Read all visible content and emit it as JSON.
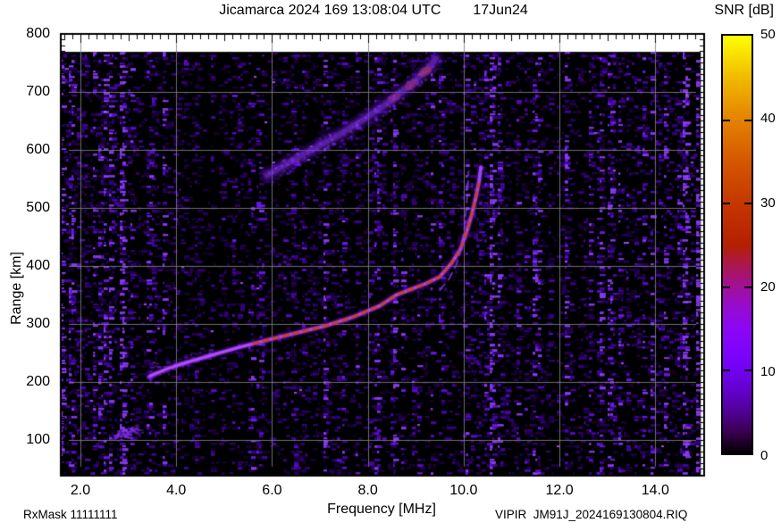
{
  "chart_data": {
    "type": "heatmap",
    "title": "Jicamarca 2024 169 13:08:04 UTC",
    "date_label": "17Jun24",
    "xlabel": "Frequency [MHz]",
    "ylabel": "Range [km]",
    "colorbar_label": "SNR [dB]",
    "footer_left": "RxMask 11111111",
    "footer_right": "VIPIR  JM91J_2024169130804.RIQ",
    "x_ticks": [
      2.0,
      4.0,
      6.0,
      8.0,
      10.0,
      12.0,
      14.0
    ],
    "x_tick_labels": [
      "2.0",
      "4.0",
      "6.0",
      "8.0",
      "10.0",
      "12.0",
      "14.0"
    ],
    "y_ticks": [
      100,
      200,
      300,
      400,
      500,
      600,
      700,
      800
    ],
    "y_tick_labels": [
      "100",
      "200",
      "300",
      "400",
      "500",
      "600",
      "700",
      "800"
    ],
    "colorbar_ticks": [
      0,
      10,
      20,
      30,
      40,
      50
    ],
    "colorbar_tick_labels": [
      "0",
      "10",
      "20",
      "30",
      "40",
      "50"
    ],
    "colorbar_range_db": [
      0,
      50
    ],
    "x_range_mhz": [
      1.59,
      15.02
    ],
    "y_range_km": [
      38,
      800
    ],
    "data_extent": {
      "x_max_mhz": 14.95,
      "y_max_km": 769
    },
    "grid": true,
    "legend_position": "right-colorbar",
    "palette_stops": [
      {
        "db": 0,
        "color": "#000000"
      },
      {
        "db": 2.5,
        "color": "#39004f"
      },
      {
        "db": 5,
        "color": "#510096"
      },
      {
        "db": 7.5,
        "color": "#6301ca"
      },
      {
        "db": 10,
        "color": "#7202f2"
      },
      {
        "db": 12.5,
        "color": "#7f04fe"
      },
      {
        "db": 15,
        "color": "#8c07f2"
      },
      {
        "db": 17.5,
        "color": "#970bcf"
      },
      {
        "db": 20,
        "color": "#a11096"
      },
      {
        "db": 22.5,
        "color": "#ab174f"
      },
      {
        "db": 25,
        "color": "#b42000"
      },
      {
        "db": 30,
        "color": "#c53700"
      },
      {
        "db": 35,
        "color": "#d55700"
      },
      {
        "db": 40,
        "color": "#e48300"
      },
      {
        "db": 45,
        "color": "#f1ba00"
      },
      {
        "db": 50,
        "color": "#ffff00"
      }
    ],
    "noise_floor_db": [
      0,
      8
    ],
    "hot_noise_columns_mhz": [
      2.85,
      4.45,
      5.85,
      10.55,
      10.72,
      12.75,
      13.4,
      14.6,
      14.85
    ],
    "traces": {
      "f_region_echo": {
        "snr_db": 28,
        "core_snr_range_mhz": [
          5.6,
          10.33
        ],
        "points_mhz_km": [
          [
            3.45,
            210
          ],
          [
            3.8,
            222
          ],
          [
            4.2,
            233
          ],
          [
            4.7,
            245
          ],
          [
            5.3,
            259
          ],
          [
            5.9,
            272
          ],
          [
            6.5,
            284
          ],
          [
            7.1,
            296
          ],
          [
            7.7,
            312
          ],
          [
            8.25,
            331
          ],
          [
            8.6,
            350
          ],
          [
            9.2,
            369
          ],
          [
            9.5,
            381
          ],
          [
            9.75,
            405
          ],
          [
            9.93,
            428
          ],
          [
            10.06,
            458
          ],
          [
            10.17,
            489
          ],
          [
            10.26,
            520
          ],
          [
            10.32,
            545
          ],
          [
            10.34,
            558
          ],
          [
            10.36,
            570
          ]
        ]
      },
      "f_region_secondary_branch": {
        "snr_db": 12,
        "points_mhz_km": [
          [
            9.5,
            358
          ],
          [
            9.7,
            378
          ],
          [
            9.85,
            402
          ],
          [
            9.95,
            432
          ],
          [
            10.02,
            468
          ],
          [
            10.06,
            505
          ],
          [
            10.09,
            540
          ],
          [
            10.1,
            562
          ]
        ]
      },
      "second_hop_echo": {
        "snr_db": 12,
        "points_mhz_km": [
          [
            5.9,
            556
          ],
          [
            6.4,
            580
          ],
          [
            6.9,
            603
          ],
          [
            7.4,
            626
          ],
          [
            7.9,
            652
          ],
          [
            8.4,
            680
          ],
          [
            8.9,
            712
          ],
          [
            9.25,
            740
          ],
          [
            9.42,
            757
          ]
        ]
      },
      "e_region_patch": {
        "snr_db": 12,
        "center_mhz_km": [
          2.95,
          113
        ],
        "width_mhz": 0.55,
        "height_km": 22
      }
    }
  }
}
